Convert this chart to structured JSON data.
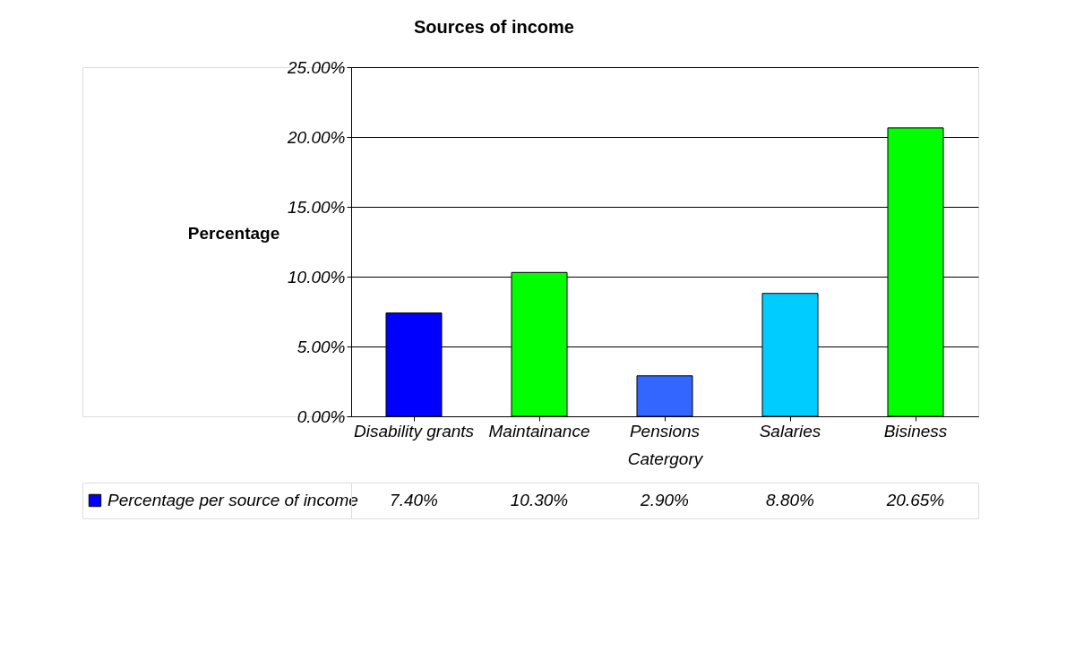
{
  "chart_data": {
    "type": "bar",
    "title": "Sources of income",
    "xlabel": "Catergory",
    "ylabel": "Percentage",
    "categories": [
      "Disability grants",
      "Maintainance",
      "Pensions",
      "Salaries",
      "Bisiness"
    ],
    "series": [
      {
        "name": "Percentage per source of income",
        "values": [
          7.4,
          10.3,
          2.9,
          8.8,
          20.65
        ]
      }
    ],
    "colors": [
      "#0000ff",
      "#00ff00",
      "#3366ff",
      "#00ccff",
      "#00ff00"
    ],
    "value_labels": [
      "7.40%",
      "10.30%",
      "2.90%",
      "8.80%",
      "20.65%"
    ],
    "ylim": [
      0,
      25
    ],
    "yticks": [
      {
        "value": 0,
        "label": "0.00%"
      },
      {
        "value": 5,
        "label": "5.00%"
      },
      {
        "value": 10,
        "label": "10.00%"
      },
      {
        "value": 15,
        "label": "15.00%"
      },
      {
        "value": 20,
        "label": "20.00%"
      },
      {
        "value": 25,
        "label": "25.00%"
      }
    ],
    "grid": "y"
  }
}
